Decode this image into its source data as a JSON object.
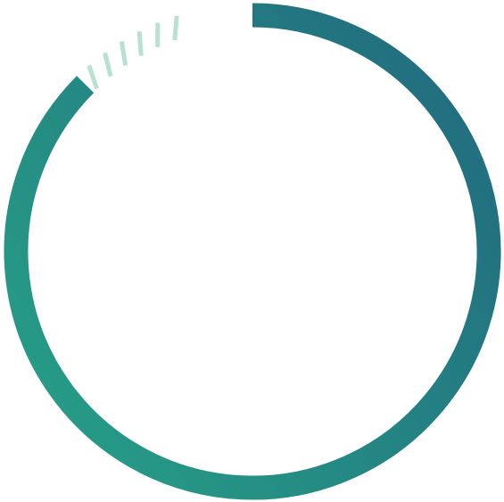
{
  "progress_ring": {
    "progress": 0.875,
    "colors": {
      "gradient_start": "#27a187",
      "gradient_end": "#226f80",
      "dash_color": "#b8e0d4",
      "background": "#ffffff"
    },
    "remaining_style": "dashed",
    "remaining_dash_count": 6
  }
}
